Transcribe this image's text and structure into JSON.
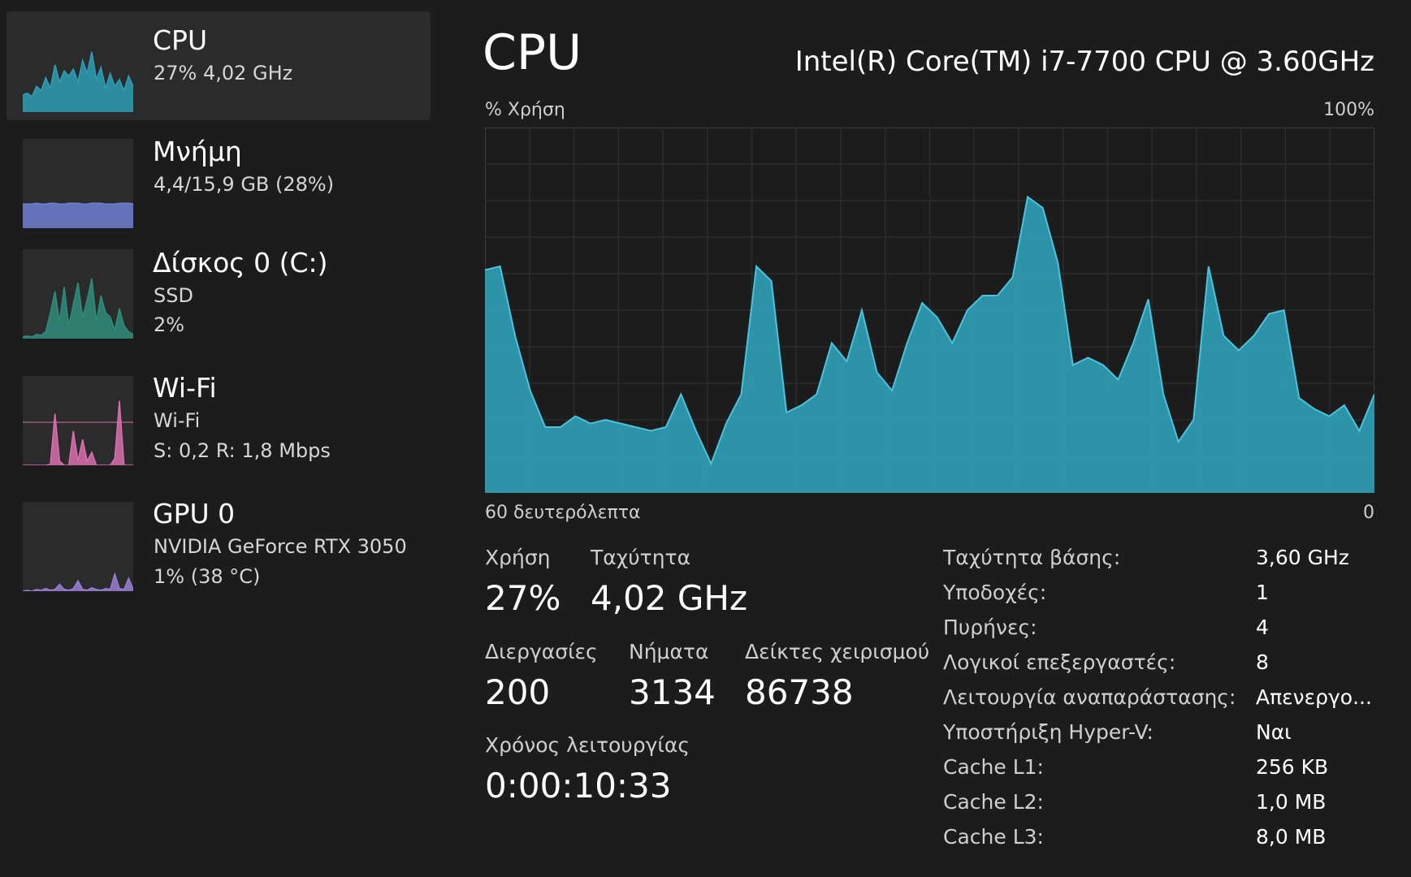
{
  "sidebar": {
    "items": [
      {
        "title": "CPU",
        "line1": "27%  4,02 GHz",
        "line2": "",
        "color": "#2f9db5",
        "selected": true
      },
      {
        "title": "Μνήμη",
        "line1": "4,4/15,9 GB (28%)",
        "line2": "",
        "color": "#6f7fd4",
        "selected": false
      },
      {
        "title": "Δίσκος 0 (C:)",
        "line1": "SSD",
        "line2": "2%",
        "color": "#2f8c7a",
        "selected": false
      },
      {
        "title": "Wi-Fi",
        "line1": "Wi-Fi",
        "line2": "S: 0,2  R: 1,8 Mbps",
        "color": "#d86fae",
        "selected": false
      },
      {
        "title": "GPU 0",
        "line1": "NVIDIA GeForce RTX 3050",
        "line2": "1%  (38 °C)",
        "color": "#9a7fd4",
        "selected": false
      }
    ]
  },
  "main": {
    "title": "CPU",
    "model": "Intel(R) Core(TM) i7-7700 CPU @ 3.60GHz",
    "chart_top_left": "% Χρήση",
    "chart_top_right": "100%",
    "chart_bottom_left": "60 δευτερόλεπτα",
    "chart_bottom_right": "0"
  },
  "chart_data": {
    "type": "area",
    "ylim": [
      0,
      100
    ],
    "xlim": [
      60,
      0
    ],
    "grid": true,
    "color": "#2f9db5",
    "values": [
      61,
      62,
      43,
      28,
      18,
      18,
      21,
      19,
      20,
      19,
      18,
      17,
      18,
      27,
      17,
      8,
      19,
      27,
      62,
      58,
      22,
      24,
      27,
      41,
      36,
      50,
      33,
      28,
      41,
      52,
      48,
      41,
      50,
      54,
      54,
      59,
      81,
      78,
      63,
      35,
      37,
      35,
      31,
      41,
      53,
      27,
      14,
      20,
      62,
      43,
      39,
      43,
      49,
      50,
      26,
      23,
      21,
      24,
      17,
      27
    ],
    "sidebar_series": {
      "cpu": [
        20,
        22,
        18,
        30,
        25,
        40,
        28,
        55,
        35,
        48,
        42,
        50,
        35,
        60,
        45,
        70,
        38,
        52,
        28,
        45,
        30,
        38,
        25,
        42,
        30
      ],
      "memory": [
        28,
        28,
        28,
        29,
        28,
        28,
        29,
        29,
        28,
        28,
        29,
        29,
        29,
        28,
        28,
        29,
        29,
        29,
        28,
        28,
        28,
        29,
        29,
        29,
        28
      ],
      "disk": [
        2,
        3,
        2,
        5,
        4,
        8,
        30,
        55,
        20,
        60,
        15,
        40,
        65,
        25,
        45,
        70,
        20,
        50,
        30,
        25,
        10,
        35,
        15,
        8,
        5
      ],
      "wifi": [
        0,
        0,
        0,
        0,
        0,
        0,
        1,
        60,
        5,
        0,
        0,
        40,
        5,
        30,
        5,
        15,
        0,
        0,
        0,
        0,
        8,
        75,
        0,
        0,
        0
      ],
      "wifi_ref": 50,
      "gpu": [
        0,
        1,
        0,
        2,
        1,
        3,
        1,
        2,
        8,
        2,
        1,
        3,
        12,
        2,
        1,
        4,
        2,
        1,
        3,
        2,
        20,
        3,
        2,
        15,
        2
      ]
    }
  },
  "stats": {
    "usage_label": "Χρήση",
    "usage_value": "27%",
    "speed_label": "Ταχύτητα",
    "speed_value": "4,02 GHz",
    "processes_label": "Διεργασίες",
    "processes_value": "200",
    "threads_label": "Νήματα",
    "threads_value": "3134",
    "handles_label": "Δείκτες χειρισμού",
    "handles_value": "86738",
    "uptime_label": "Χρόνος λειτουργίας",
    "uptime_value": "0:00:10:33"
  },
  "info": [
    {
      "label": "Ταχύτητα βάσης:",
      "value": "3,60 GHz"
    },
    {
      "label": "Υποδοχές:",
      "value": "1"
    },
    {
      "label": "Πυρήνες:",
      "value": "4"
    },
    {
      "label": "Λογικοί επεξεργαστές:",
      "value": "8"
    },
    {
      "label": "Λειτουργία αναπαράστασης:",
      "value": "Απενεργο..."
    },
    {
      "label": "Υποστήριξη Hyper-V:",
      "value": "Ναι"
    },
    {
      "label": "Cache L1:",
      "value": "256 KB"
    },
    {
      "label": "Cache L2:",
      "value": "1,0 MB"
    },
    {
      "label": "Cache L3:",
      "value": "8,0 MB"
    }
  ]
}
